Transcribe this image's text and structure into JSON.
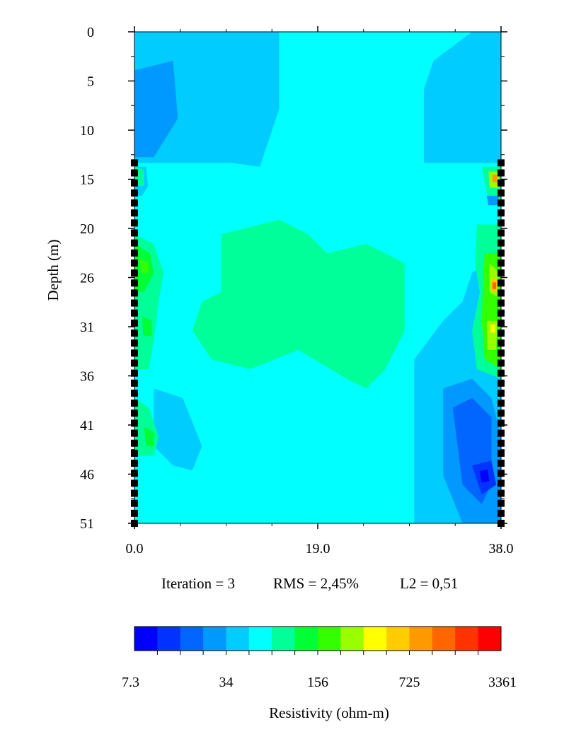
{
  "chart_data": {
    "type": "heatmap",
    "title": "",
    "xlabel": "",
    "ylabel": "Depth (m)",
    "xlim": [
      0,
      38
    ],
    "ylim": [
      0,
      51
    ],
    "x_ticks": [
      "0.0",
      "19.0",
      "38.0"
    ],
    "y_ticks": [
      "0",
      "5",
      "10",
      "15",
      "20",
      "26",
      "31",
      "36",
      "41",
      "46",
      "51"
    ],
    "y_tick_values": [
      0,
      5.1,
      10.2,
      15.3,
      20.4,
      25.5,
      30.6,
      35.7,
      40.8,
      45.9,
      51
    ],
    "annotation": {
      "iteration": "Iteration = 3",
      "rms": "RMS = 2,45%",
      "l2": "L2 = 0,51"
    },
    "electrodes": {
      "x_positions": [
        0,
        38
      ],
      "depth_start": 13.6,
      "depth_end": 51,
      "count_per_borehole": 37
    },
    "colorbar": {
      "label": "Resistivity (ohm-m)",
      "tick_labels": [
        "7.3",
        "34",
        "156",
        "725",
        "3361"
      ],
      "colors": [
        "#0000ff",
        "#0033ff",
        "#0066ff",
        "#0099ff",
        "#00ccff",
        "#00ffff",
        "#00ff99",
        "#00ff33",
        "#33ff00",
        "#99ff00",
        "#ffff00",
        "#ffcc00",
        "#ff9900",
        "#ff6600",
        "#ff3300",
        "#ff0000"
      ]
    },
    "background_value": "#00ffff",
    "regions": [
      {
        "color": "#00ccff",
        "points": [
          [
            0,
            0
          ],
          [
            15,
            0
          ],
          [
            15,
            8
          ],
          [
            13,
            14
          ],
          [
            10,
            13.6
          ],
          [
            0,
            13.6
          ]
        ]
      },
      {
        "color": "#00ccff",
        "points": [
          [
            35,
            0
          ],
          [
            38,
            0
          ],
          [
            38,
            13.6
          ],
          [
            30,
            13.6
          ],
          [
            30,
            6
          ],
          [
            31,
            3
          ]
        ]
      },
      {
        "color": "#0099ff",
        "points": [
          [
            0,
            4
          ],
          [
            4,
            3
          ],
          [
            4.5,
            9
          ],
          [
            2,
            13
          ],
          [
            0,
            13
          ]
        ]
      },
      {
        "color": "#00ff99",
        "points": [
          [
            9,
            21
          ],
          [
            13,
            20
          ],
          [
            15,
            19.5
          ],
          [
            18,
            21
          ],
          [
            20,
            23
          ],
          [
            24,
            22
          ],
          [
            28,
            24
          ],
          [
            28,
            31
          ],
          [
            26,
            35
          ],
          [
            24,
            37
          ],
          [
            22,
            36
          ],
          [
            17,
            33
          ],
          [
            12,
            35
          ],
          [
            8,
            34
          ],
          [
            6,
            31
          ],
          [
            7,
            28
          ],
          [
            9,
            27
          ]
        ]
      },
      {
        "color": "#00ccff",
        "points": [
          [
            2,
            37
          ],
          [
            5,
            38
          ],
          [
            7,
            43
          ],
          [
            6,
            45.5
          ],
          [
            4,
            45
          ],
          [
            2,
            43
          ]
        ]
      },
      {
        "color": "#00ccff",
        "points": [
          [
            29,
            34
          ],
          [
            32,
            30
          ],
          [
            34,
            28
          ],
          [
            35,
            25
          ],
          [
            38,
            23
          ],
          [
            38,
            51
          ],
          [
            29,
            51
          ],
          [
            29,
            44
          ]
        ]
      },
      {
        "color": "#0099ff",
        "points": [
          [
            32,
            37
          ],
          [
            35,
            36
          ],
          [
            37,
            38
          ],
          [
            38,
            42
          ],
          [
            38,
            51
          ],
          [
            34,
            51
          ],
          [
            32,
            46
          ]
        ]
      },
      {
        "color": "#0066ff",
        "points": [
          [
            33,
            39
          ],
          [
            35,
            38
          ],
          [
            37,
            40
          ],
          [
            37,
            47
          ],
          [
            36,
            49
          ],
          [
            34,
            47
          ]
        ]
      },
      {
        "color": "#0033ff",
        "points": [
          [
            35,
            45
          ],
          [
            37,
            44.5
          ],
          [
            37.5,
            47
          ],
          [
            36,
            48
          ]
        ]
      },
      {
        "color": "#0000ff",
        "points": [
          [
            35.8,
            45.6
          ],
          [
            36.6,
            45.4
          ],
          [
            36.8,
            46.6
          ],
          [
            36,
            46.8
          ]
        ]
      },
      {
        "color": "#00ccff",
        "points": [
          [
            0,
            14
          ],
          [
            1.2,
            14
          ],
          [
            1.4,
            16
          ],
          [
            0.8,
            17
          ],
          [
            0,
            17
          ]
        ]
      },
      {
        "color": "#00ff99",
        "points": [
          [
            0,
            14
          ],
          [
            1,
            14.3
          ],
          [
            1,
            16
          ],
          [
            0,
            16
          ]
        ]
      },
      {
        "color": "#00ff99",
        "points": [
          [
            0,
            21
          ],
          [
            2,
            22
          ],
          [
            3,
            25
          ],
          [
            2.5,
            28
          ],
          [
            2,
            32
          ],
          [
            1.5,
            35
          ],
          [
            0,
            35
          ]
        ]
      },
      {
        "color": "#00ff33",
        "points": [
          [
            0,
            22
          ],
          [
            1.6,
            23
          ],
          [
            2,
            25
          ],
          [
            1,
            27
          ],
          [
            0,
            27
          ]
        ]
      },
      {
        "color": "#33ff00",
        "points": [
          [
            0.5,
            23.5
          ],
          [
            1.5,
            24
          ],
          [
            1.5,
            25
          ],
          [
            0.7,
            25
          ]
        ]
      },
      {
        "color": "#00ff33",
        "points": [
          [
            0.8,
            29.5
          ],
          [
            1.8,
            30
          ],
          [
            1.8,
            31.5
          ],
          [
            0.9,
            31.6
          ]
        ]
      },
      {
        "color": "#00ff99",
        "points": [
          [
            0,
            38
          ],
          [
            1.5,
            39
          ],
          [
            2.5,
            42
          ],
          [
            2,
            44
          ],
          [
            0,
            44
          ]
        ]
      },
      {
        "color": "#00ff33",
        "points": [
          [
            1,
            41
          ],
          [
            2,
            41.5
          ],
          [
            2,
            43
          ],
          [
            1.2,
            43
          ]
        ]
      },
      {
        "color": "#00ff99",
        "points": [
          [
            36,
            14
          ],
          [
            38,
            14
          ],
          [
            38,
            18
          ],
          [
            36.6,
            17
          ]
        ]
      },
      {
        "color": "#00ff99",
        "points": [
          [
            35.5,
            20
          ],
          [
            38,
            20
          ],
          [
            38,
            36
          ],
          [
            35.5,
            35
          ],
          [
            35,
            31
          ],
          [
            35.8,
            27
          ],
          [
            35.3,
            24
          ]
        ]
      },
      {
        "color": "#33ff00",
        "points": [
          [
            36.3,
            23
          ],
          [
            38,
            23
          ],
          [
            38,
            35
          ],
          [
            36.3,
            34
          ],
          [
            36,
            30
          ]
        ]
      },
      {
        "color": "#99ff00",
        "points": [
          [
            36.8,
            24
          ],
          [
            37.8,
            25
          ],
          [
            37.6,
            27.5
          ],
          [
            36.8,
            27
          ]
        ]
      },
      {
        "color": "#ffcc00",
        "points": [
          [
            37,
            25.5
          ],
          [
            37.6,
            25.7
          ],
          [
            37.6,
            27
          ],
          [
            37,
            27
          ]
        ]
      },
      {
        "color": "#ff6600",
        "points": [
          [
            37.1,
            26
          ],
          [
            37.5,
            26
          ],
          [
            37.5,
            26.7
          ],
          [
            37.1,
            26.7
          ]
        ]
      },
      {
        "color": "#99ff00",
        "points": [
          [
            36.7,
            14.5
          ],
          [
            37.8,
            14.5
          ],
          [
            37.8,
            16.2
          ],
          [
            36.8,
            16.2
          ]
        ]
      },
      {
        "color": "#ff9900",
        "points": [
          [
            37.1,
            14.8
          ],
          [
            37.6,
            14.8
          ],
          [
            37.6,
            15.6
          ],
          [
            37.1,
            15.6
          ]
        ]
      },
      {
        "color": "#99ff00",
        "points": [
          [
            36.5,
            30
          ],
          [
            37.6,
            30
          ],
          [
            37.5,
            33
          ],
          [
            36.6,
            33
          ]
        ]
      },
      {
        "color": "#ffff00",
        "points": [
          [
            36.9,
            30.4
          ],
          [
            37.4,
            30.4
          ],
          [
            37.4,
            31.2
          ],
          [
            36.9,
            31.2
          ]
        ]
      },
      {
        "color": "#0099ff",
        "points": [
          [
            36.5,
            17
          ],
          [
            37.8,
            17
          ],
          [
            37.6,
            18
          ],
          [
            36.7,
            18
          ]
        ]
      }
    ]
  }
}
